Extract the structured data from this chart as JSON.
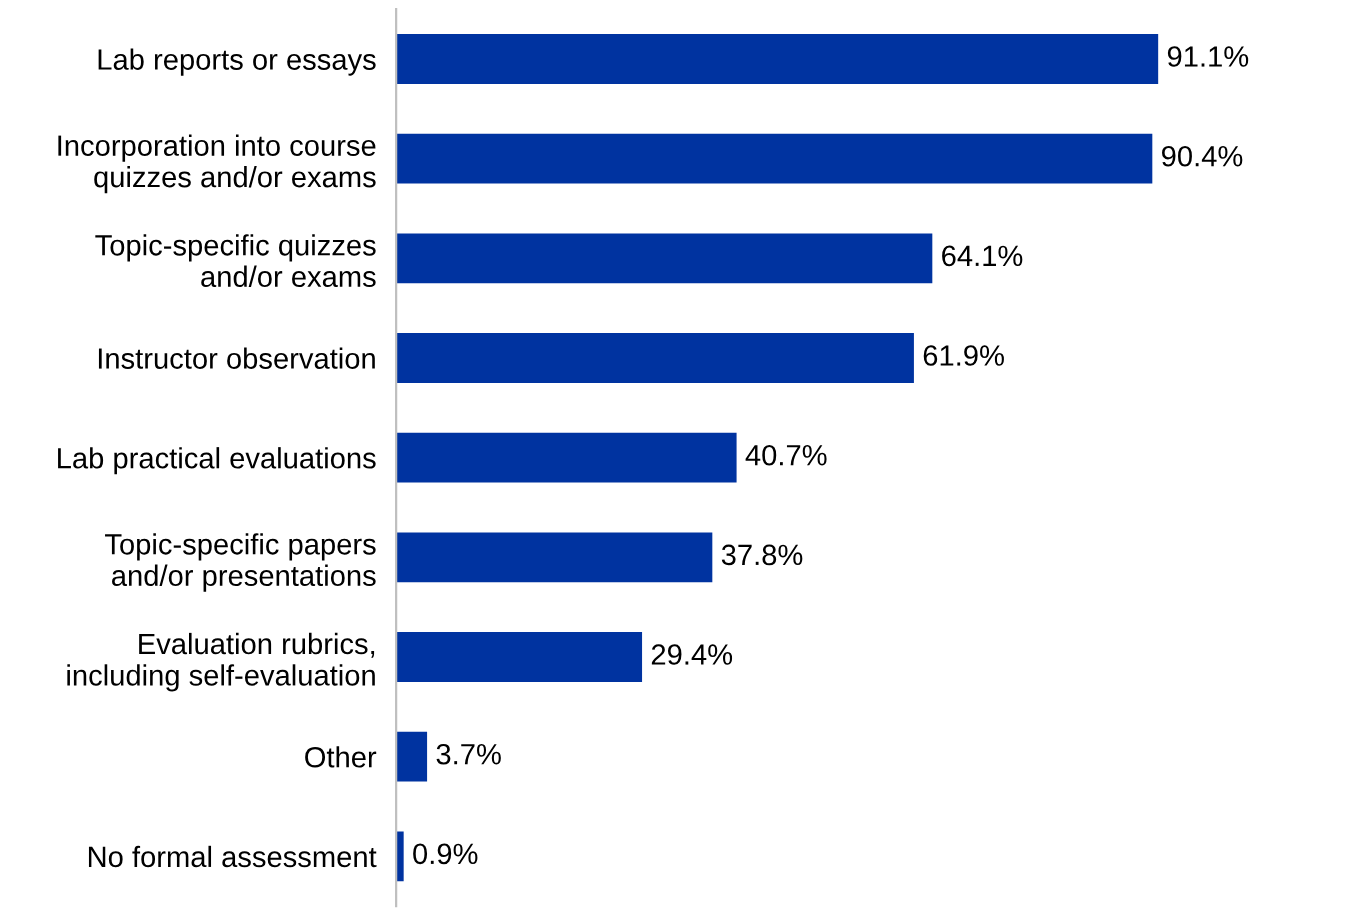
{
  "chart_data": {
    "type": "bar",
    "orientation": "horizontal",
    "categories": [
      "Lab reports or essays",
      "Incorporation into course\nquizzes and/or exams",
      "Topic-specific quizzes\nand/or exams",
      "Instructor observation",
      "Lab practical evaluations",
      "Topic-specific papers\nand/or presentations",
      "Evaluation rubrics,\nincluding self-evaluation",
      "Other",
      "No formal assessment"
    ],
    "values": [
      91.1,
      90.4,
      64.1,
      61.9,
      40.7,
      37.8,
      29.4,
      3.7,
      0.9
    ],
    "value_labels": [
      "91.1%",
      "90.4%",
      "64.1%",
      "61.9%",
      "40.7%",
      "37.8%",
      "29.4%",
      "3.7%",
      "0.9%"
    ],
    "color": "#0033a0",
    "tick_labels": "y",
    "grid": false,
    "legend": false
  }
}
